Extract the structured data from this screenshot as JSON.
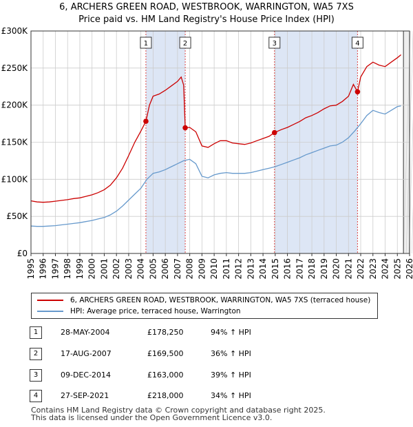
{
  "title_line1": "6, ARCHERS GREEN ROAD, WESTBROOK, WARRINGTON, WA5 7XS",
  "title_line2": "Price paid vs. HM Land Registry's House Price Index (HPI)",
  "colors": {
    "property": "#cc0000",
    "hpi": "#6699cc",
    "shade": "#dde6f5",
    "grid": "#cccccc",
    "marker_line": "#dd4444"
  },
  "chart_data": {
    "type": "line",
    "title": "Price paid vs. HM Land Registry's House Price Index (HPI)",
    "ylim": [
      0,
      300000
    ],
    "xlim": [
      1995,
      2026
    ],
    "y_ticks": [
      {
        "value": 0,
        "label": "£0"
      },
      {
        "value": 50000,
        "label": "£50K"
      },
      {
        "value": 100000,
        "label": "£100K"
      },
      {
        "value": 150000,
        "label": "£150K"
      },
      {
        "value": 200000,
        "label": "£200K"
      },
      {
        "value": 250000,
        "label": "£250K"
      },
      {
        "value": 300000,
        "label": "£300K"
      }
    ],
    "x_ticks": [
      "1995",
      "1996",
      "1997",
      "1998",
      "1999",
      "2000",
      "2001",
      "2002",
      "2003",
      "2004",
      "2005",
      "2006",
      "2007",
      "2008",
      "2009",
      "2010",
      "2011",
      "2012",
      "2013",
      "2014",
      "2015",
      "2016",
      "2017",
      "2018",
      "2019",
      "2020",
      "2021",
      "2022",
      "2023",
      "2024",
      "2025",
      "2026"
    ],
    "series": [
      {
        "name": "6, ARCHERS GREEN ROAD, WESTBROOK, WARRINGTON, WA5 7XS (terraced house)",
        "color": "#cc0000",
        "points": [
          [
            1995.0,
            71000
          ],
          [
            1995.5,
            69500
          ],
          [
            1996.0,
            69000
          ],
          [
            1996.5,
            69500
          ],
          [
            1997.0,
            70500
          ],
          [
            1997.5,
            71500
          ],
          [
            1998.0,
            72500
          ],
          [
            1998.5,
            74000
          ],
          [
            1999.0,
            75000
          ],
          [
            1999.5,
            77000
          ],
          [
            2000.0,
            79000
          ],
          [
            2000.5,
            82000
          ],
          [
            2001.0,
            86000
          ],
          [
            2001.5,
            92000
          ],
          [
            2002.0,
            102000
          ],
          [
            2002.5,
            115000
          ],
          [
            2003.0,
            132000
          ],
          [
            2003.5,
            150000
          ],
          [
            2004.0,
            165000
          ],
          [
            2004.41,
            178250
          ],
          [
            2004.7,
            200000
          ],
          [
            2005.0,
            212000
          ],
          [
            2005.5,
            215000
          ],
          [
            2006.0,
            220000
          ],
          [
            2006.5,
            226000
          ],
          [
            2007.0,
            232000
          ],
          [
            2007.3,
            238000
          ],
          [
            2007.5,
            227000
          ],
          [
            2007.63,
            169500
          ],
          [
            2008.0,
            170000
          ],
          [
            2008.5,
            164000
          ],
          [
            2009.0,
            145000
          ],
          [
            2009.5,
            143000
          ],
          [
            2010.0,
            148000
          ],
          [
            2010.5,
            152000
          ],
          [
            2011.0,
            152000
          ],
          [
            2011.5,
            149000
          ],
          [
            2012.0,
            148000
          ],
          [
            2012.5,
            147000
          ],
          [
            2013.0,
            149000
          ],
          [
            2013.5,
            152000
          ],
          [
            2014.0,
            155000
          ],
          [
            2014.5,
            158000
          ],
          [
            2014.94,
            163000
          ],
          [
            2015.5,
            167000
          ],
          [
            2016.0,
            170000
          ],
          [
            2016.5,
            174000
          ],
          [
            2017.0,
            178000
          ],
          [
            2017.5,
            183000
          ],
          [
            2018.0,
            186000
          ],
          [
            2018.5,
            190000
          ],
          [
            2019.0,
            195000
          ],
          [
            2019.5,
            199000
          ],
          [
            2020.0,
            200000
          ],
          [
            2020.5,
            205000
          ],
          [
            2021.0,
            212000
          ],
          [
            2021.4,
            228000
          ],
          [
            2021.74,
            218000
          ],
          [
            2022.0,
            238000
          ],
          [
            2022.5,
            252000
          ],
          [
            2023.0,
            258000
          ],
          [
            2023.5,
            254000
          ],
          [
            2024.0,
            252000
          ],
          [
            2024.5,
            258000
          ],
          [
            2025.0,
            264000
          ],
          [
            2025.3,
            268000
          ]
        ]
      },
      {
        "name": "HPI: Average price, terraced house, Warrington",
        "color": "#6699cc",
        "points": [
          [
            1995.0,
            37000
          ],
          [
            1995.5,
            36500
          ],
          [
            1996.0,
            36500
          ],
          [
            1996.5,
            37000
          ],
          [
            1997.0,
            37500
          ],
          [
            1997.5,
            38500
          ],
          [
            1998.0,
            39500
          ],
          [
            1998.5,
            40500
          ],
          [
            1999.0,
            41500
          ],
          [
            1999.5,
            43000
          ],
          [
            2000.0,
            44500
          ],
          [
            2000.5,
            46500
          ],
          [
            2001.0,
            48500
          ],
          [
            2001.5,
            52000
          ],
          [
            2002.0,
            57000
          ],
          [
            2002.5,
            64000
          ],
          [
            2003.0,
            72000
          ],
          [
            2003.5,
            80000
          ],
          [
            2004.0,
            88000
          ],
          [
            2004.5,
            100000
          ],
          [
            2005.0,
            108000
          ],
          [
            2005.5,
            110000
          ],
          [
            2006.0,
            113000
          ],
          [
            2006.5,
            117000
          ],
          [
            2007.0,
            121000
          ],
          [
            2007.5,
            125000
          ],
          [
            2008.0,
            127000
          ],
          [
            2008.5,
            121000
          ],
          [
            2009.0,
            104000
          ],
          [
            2009.5,
            102000
          ],
          [
            2010.0,
            106000
          ],
          [
            2010.5,
            108000
          ],
          [
            2011.0,
            109000
          ],
          [
            2011.5,
            108000
          ],
          [
            2012.0,
            108000
          ],
          [
            2012.5,
            108000
          ],
          [
            2013.0,
            109000
          ],
          [
            2013.5,
            111000
          ],
          [
            2014.0,
            113000
          ],
          [
            2014.5,
            115000
          ],
          [
            2015.0,
            117000
          ],
          [
            2015.5,
            120000
          ],
          [
            2016.0,
            123000
          ],
          [
            2016.5,
            126000
          ],
          [
            2017.0,
            129000
          ],
          [
            2017.5,
            133000
          ],
          [
            2018.0,
            136000
          ],
          [
            2018.5,
            139000
          ],
          [
            2019.0,
            142000
          ],
          [
            2019.5,
            145000
          ],
          [
            2020.0,
            146000
          ],
          [
            2020.5,
            150000
          ],
          [
            2021.0,
            156000
          ],
          [
            2021.5,
            165000
          ],
          [
            2022.0,
            175000
          ],
          [
            2022.5,
            186000
          ],
          [
            2023.0,
            193000
          ],
          [
            2023.5,
            190000
          ],
          [
            2024.0,
            188000
          ],
          [
            2024.5,
            193000
          ],
          [
            2025.0,
            198000
          ],
          [
            2025.3,
            199000
          ]
        ]
      }
    ],
    "sales": [
      {
        "num": "1",
        "x": 2004.41,
        "y": 178250,
        "date": "28-MAY-2004",
        "price": "£178,250",
        "hpi": "94% ↑ HPI"
      },
      {
        "num": "2",
        "x": 2007.63,
        "y": 169500,
        "date": "17-AUG-2007",
        "price": "£169,500",
        "hpi": "36% ↑ HPI"
      },
      {
        "num": "3",
        "x": 2014.94,
        "y": 163000,
        "date": "09-DEC-2014",
        "price": "£163,000",
        "hpi": "39% ↑ HPI"
      },
      {
        "num": "4",
        "x": 2021.74,
        "y": 218000,
        "date": "27-SEP-2021",
        "price": "£218,000",
        "hpi": "34% ↑ HPI"
      }
    ],
    "shaded_ranges": [
      [
        2004.41,
        2007.63
      ],
      [
        2014.94,
        2021.74
      ]
    ],
    "future_from": 2025.5
  },
  "legend": {
    "property_label": "6, ARCHERS GREEN ROAD, WESTBROOK, WARRINGTON, WA5 7XS (terraced house)",
    "hpi_label": "HPI: Average price, terraced house, Warrington"
  },
  "footer": {
    "line1": "Contains HM Land Registry data © Crown copyright and database right 2025.",
    "line2": "This data is licensed under the Open Government Licence v3.0."
  }
}
